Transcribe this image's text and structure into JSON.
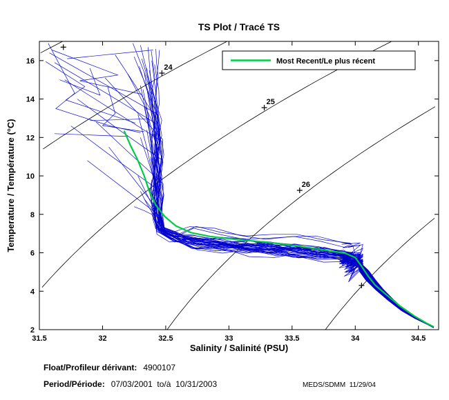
{
  "legend": {
    "label": "Most Recent/Le plus récent"
  },
  "footer": {
    "float_label": "Float/Profileur dérivant:",
    "float_value": "4900107",
    "period_label": "Period/Période:",
    "period_value": "07/03/2001  to/à  10/31/2003",
    "credit": "MEDS/SDMM  11/29/04"
  },
  "chart_data": {
    "type": "line",
    "title": "TS Plot / Tracé TS",
    "xlabel": "Salinity / Salinité (PSU)",
    "ylabel": "Temperature / Température (°C)",
    "xlim": [
      31.5,
      34.66
    ],
    "ylim": [
      2,
      17
    ],
    "xticks": [
      31.5,
      32,
      32.5,
      33,
      33.5,
      34,
      34.5
    ],
    "xtick_labels": [
      "31.5",
      "32",
      "32.5",
      "33",
      "33.5",
      "34",
      "34.5"
    ],
    "yticks": [
      2,
      4,
      6,
      8,
      10,
      12,
      14,
      16
    ],
    "ytick_labels": [
      "2",
      "4",
      "6",
      "8",
      "10",
      "12",
      "14",
      "16"
    ],
    "grid": false,
    "legend_entries": [
      "Most Recent/Le plus récent"
    ],
    "legend_position": "upper-right",
    "profile_color": "#0000cc",
    "recent_color": "#00cc44",
    "contour_color": "#000000",
    "isopycnals": {
      "note": "sigma-t density contours, sigma_t = 28.152 - 0.0735*T - 0.00469*T^2 + (0.802 - 0.002*T)*(S - 35)",
      "levels": [
        23,
        24,
        25,
        26,
        27
      ],
      "labels": [
        {
          "level": "24",
          "S": 32.47,
          "T": 15.35
        },
        {
          "level": "25",
          "S": 33.28,
          "T": 13.55
        },
        {
          "level": "26",
          "S": 33.56,
          "T": 9.25
        }
      ],
      "plus_markers": [
        {
          "level": "23",
          "S": 31.69,
          "T": 16.7
        },
        {
          "level": "27",
          "S": 34.05,
          "T": 4.3
        }
      ]
    },
    "most_recent_profile": {
      "points": [
        [
          32.17,
          12.35
        ],
        [
          32.22,
          11.6
        ],
        [
          32.28,
          10.8
        ],
        [
          32.33,
          10.0
        ],
        [
          32.37,
          9.2
        ],
        [
          32.42,
          8.5
        ],
        [
          32.49,
          7.9
        ],
        [
          32.58,
          7.4
        ],
        [
          32.7,
          7.05
        ],
        [
          32.85,
          6.85
        ],
        [
          33.05,
          6.7
        ],
        [
          33.3,
          6.55
        ],
        [
          33.55,
          6.35
        ],
        [
          33.75,
          6.15
        ],
        [
          33.92,
          5.98
        ],
        [
          34.0,
          5.75
        ],
        [
          34.05,
          5.3
        ],
        [
          34.1,
          4.8
        ],
        [
          34.16,
          4.3
        ],
        [
          34.25,
          3.8
        ],
        [
          34.35,
          3.25
        ],
        [
          34.47,
          2.7
        ],
        [
          34.56,
          2.35
        ],
        [
          34.62,
          2.15
        ]
      ]
    },
    "profile_params_key": [
      "surface_temp_C",
      "surface_salinity_PSU",
      "halocline_salinity_PSU",
      "band_temp_at_S33_C",
      "salinity_wiggle",
      "knot_dip_C",
      "jitter"
    ],
    "profiles_params": [
      [
        16.8,
        32.3,
        32.42,
        6.4,
        0.012,
        0.9,
        0.3
      ],
      [
        16.5,
        32.38,
        32.4,
        6.2,
        0.015,
        0.0,
        -0.2
      ],
      [
        16.2,
        32.25,
        32.45,
        6.5,
        0.01,
        1.2,
        0.8
      ],
      [
        15.9,
        31.62,
        32.44,
        6.3,
        0.018,
        0.5,
        -0.6
      ],
      [
        15.6,
        32.35,
        32.41,
        6.6,
        0.012,
        0.0,
        0.1
      ],
      [
        15.3,
        32.2,
        32.46,
        6.1,
        0.02,
        0.8,
        -0.9
      ],
      [
        16.6,
        32.42,
        32.43,
        6.35,
        0.01,
        0.4,
        0.5
      ],
      [
        15.0,
        31.7,
        32.47,
        6.45,
        0.016,
        0.0,
        -0.4
      ],
      [
        14.7,
        32.3,
        32.4,
        6.55,
        0.014,
        1.0,
        0.7
      ],
      [
        14.4,
        32.36,
        32.44,
        6.25,
        0.02,
        0.3,
        -0.8
      ],
      [
        16.3,
        32.1,
        32.42,
        6.5,
        0.012,
        0.7,
        0.2
      ],
      [
        14.0,
        31.8,
        32.46,
        6.4,
        0.018,
        0.0,
        -0.3
      ],
      [
        13.6,
        32.33,
        32.43,
        6.6,
        0.012,
        1.1,
        0.9
      ],
      [
        16.0,
        32.39,
        32.45,
        6.15,
        0.02,
        0.2,
        -0.7
      ],
      [
        13.2,
        32.28,
        32.41,
        6.45,
        0.014,
        0.6,
        0.4
      ],
      [
        12.8,
        31.95,
        32.47,
        6.3,
        0.016,
        0.0,
        -0.5
      ],
      [
        15.8,
        32.41,
        32.42,
        6.55,
        0.01,
        0.9,
        0.6
      ],
      [
        12.4,
        32.35,
        32.44,
        6.2,
        0.02,
        0.4,
        -0.1
      ],
      [
        12.0,
        32.3,
        32.46,
        6.5,
        0.013,
        0.0,
        0.8
      ],
      [
        16.7,
        32.36,
        32.4,
        6.35,
        0.017,
        0.7,
        -0.9
      ],
      [
        11.5,
        32.05,
        32.43,
        6.6,
        0.012,
        0.3,
        0.3
      ],
      [
        11.0,
        32.38,
        32.45,
        6.25,
        0.019,
        0.0,
        -0.6
      ],
      [
        15.4,
        32.33,
        32.41,
        6.45,
        0.011,
        1.0,
        0.1
      ],
      [
        10.5,
        32.4,
        32.47,
        6.4,
        0.015,
        0.5,
        -0.4
      ],
      [
        10.0,
        32.28,
        32.42,
        6.55,
        0.02,
        0.0,
        0.7
      ],
      [
        16.4,
        31.58,
        32.44,
        6.3,
        0.012,
        0.8,
        -0.8
      ],
      [
        9.6,
        32.35,
        32.46,
        6.5,
        0.016,
        0.2,
        0.5
      ],
      [
        9.2,
        32.3,
        32.4,
        6.2,
        0.013,
        0.0,
        -0.2
      ],
      [
        14.9,
        32.37,
        32.43,
        6.6,
        0.02,
        0.6,
        0.9
      ],
      [
        8.8,
        32.33,
        32.45,
        6.35,
        0.012,
        0.0,
        -0.7
      ],
      [
        8.4,
        32.25,
        32.41,
        6.5,
        0.018,
        1.5,
        0.2
      ],
      [
        15.1,
        32.02,
        32.47,
        6.25,
        0.011,
        0.3,
        -0.5
      ],
      [
        13.9,
        32.34,
        32.42,
        6.45,
        0.02,
        0.0,
        0.6
      ],
      [
        16.1,
        32.31,
        32.46,
        6.55,
        0.013,
        0.7,
        -0.3
      ],
      [
        12.6,
        31.75,
        32.4,
        6.3,
        0.017,
        0.4,
        0.8
      ],
      [
        14.2,
        32.39,
        32.44,
        6.4,
        0.012,
        0.0,
        -0.9
      ],
      [
        15.7,
        32.29,
        32.45,
        6.6,
        0.019,
        1.5,
        0.4
      ],
      [
        13.0,
        32.36,
        32.41,
        6.2,
        0.014,
        0.5,
        -0.1
      ],
      [
        16.9,
        32.24,
        32.43,
        6.5,
        0.02,
        0.0,
        0.7
      ],
      [
        10.8,
        31.88,
        32.47,
        6.35,
        0.012,
        0.6,
        -0.6
      ],
      [
        14.5,
        32.32,
        32.42,
        6.45,
        0.016,
        0.2,
        0.3
      ],
      [
        15.5,
        32.37,
        32.46,
        6.3,
        0.011,
        0.8,
        -0.4
      ],
      [
        16.55,
        32.44,
        32.44,
        7.1,
        0.012,
        0.3,
        0.15
      ],
      [
        12.2,
        32.42,
        32.42,
        6.95,
        0.015,
        0.0,
        -0.35
      ],
      [
        9.8,
        32.39,
        32.39,
        7.05,
        0.018,
        0.6,
        0.55
      ]
    ],
    "outlier_segments": [
      [
        [
          31.57,
          16.9
        ],
        [
          31.78,
          14.3
        ],
        [
          31.63,
          13.5
        ],
        [
          32.06,
          12.6
        ],
        [
          32.3,
          12.25
        ]
      ],
      [
        [
          31.55,
          15.95
        ],
        [
          31.86,
          14.65
        ],
        [
          31.71,
          13.95
        ],
        [
          32.26,
          12.75
        ]
      ],
      [
        [
          31.6,
          16.55
        ],
        [
          32.12,
          15.25
        ],
        [
          31.82,
          14.95
        ],
        [
          32.31,
          14.25
        ]
      ],
      [
        [
          31.9,
          12.88
        ],
        [
          32.36,
          12.97
        ]
      ],
      [
        [
          32.04,
          14.65
        ],
        [
          32.1,
          13.25
        ],
        [
          32.0,
          12.62
        ],
        [
          32.33,
          12.3
        ]
      ],
      [
        [
          31.62,
          12.2
        ],
        [
          32.2,
          12.05
        ]
      ],
      [
        [
          31.72,
          16.1
        ],
        [
          32.4,
          16.55
        ]
      ],
      [
        [
          31.66,
          15.0
        ],
        [
          31.98,
          14.2
        ],
        [
          31.9,
          15.6
        ]
      ]
    ]
  }
}
